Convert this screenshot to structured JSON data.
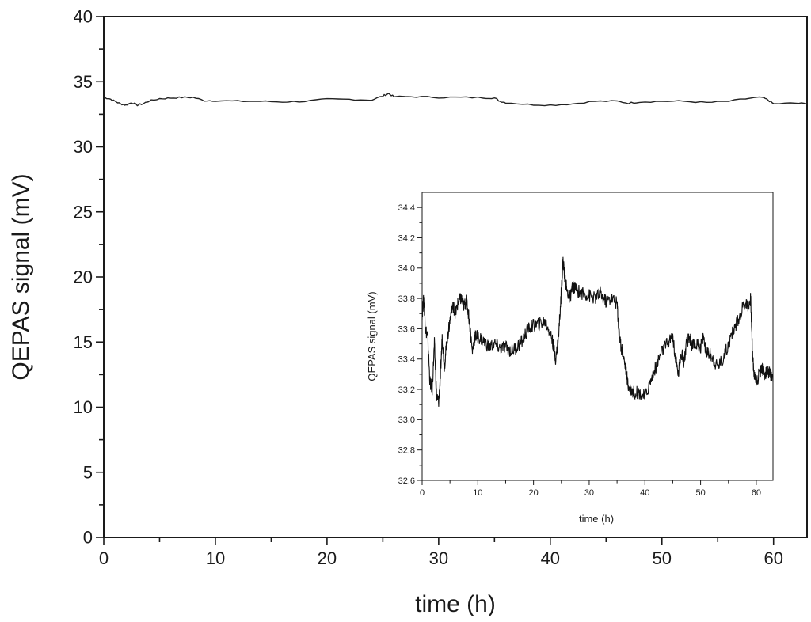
{
  "chart_data": [
    {
      "type": "line",
      "role": "main",
      "xlabel": "time (h)",
      "ylabel": "QEPAS signal (mV)",
      "xlim": [
        0,
        63
      ],
      "ylim": [
        0,
        40
      ],
      "xticks": [
        0,
        10,
        20,
        30,
        40,
        50,
        60
      ],
      "xtick_labels": [
        "0",
        "10",
        "20",
        "30",
        "40",
        "50",
        "60"
      ],
      "yticks": [
        0,
        5,
        10,
        15,
        20,
        25,
        30,
        35,
        40
      ],
      "ytick_labels": [
        "0",
        "5",
        "10",
        "15",
        "20",
        "25",
        "30",
        "35",
        "40"
      ],
      "line_color": "#222222",
      "series": [
        {
          "x": [
            0,
            0.5,
            1,
            1.5,
            2,
            2.5,
            3,
            3.5,
            4,
            5,
            6,
            7,
            8,
            9,
            10,
            12,
            14,
            16,
            18,
            20,
            22,
            24,
            25,
            25.5,
            26,
            28,
            30,
            32,
            34,
            35,
            35.5,
            36,
            38,
            40,
            42,
            44,
            46,
            47,
            48,
            50,
            52,
            54,
            56,
            58,
            59,
            59.5,
            60,
            62,
            63
          ],
          "y": [
            33.8,
            33.7,
            33.5,
            33.3,
            33.2,
            33.4,
            33.2,
            33.3,
            33.5,
            33.7,
            33.75,
            33.8,
            33.8,
            33.55,
            33.55,
            33.5,
            33.5,
            33.45,
            33.5,
            33.65,
            33.65,
            33.6,
            33.9,
            34.1,
            33.85,
            33.85,
            33.8,
            33.8,
            33.78,
            33.75,
            33.5,
            33.4,
            33.25,
            33.2,
            33.3,
            33.5,
            33.5,
            33.35,
            33.45,
            33.5,
            33.5,
            33.4,
            33.5,
            33.75,
            33.8,
            33.6,
            33.3,
            33.35,
            33.3
          ]
        }
      ]
    },
    {
      "type": "line",
      "role": "inset",
      "xlabel": "time (h)",
      "ylabel": "QEPAS signal (mV)",
      "xlim": [
        0,
        63
      ],
      "ylim": [
        32.6,
        34.5
      ],
      "xticks": [
        0,
        10,
        20,
        30,
        40,
        50,
        60
      ],
      "xtick_labels": [
        "0",
        "10",
        "20",
        "30",
        "40",
        "50",
        "60"
      ],
      "yticks": [
        32.6,
        32.8,
        33.0,
        33.2,
        33.4,
        33.6,
        33.8,
        34.0,
        34.2,
        34.4
      ],
      "ytick_labels": [
        "32,6",
        "32,8",
        "33,0",
        "33,2",
        "33,4",
        "33,6",
        "33,8",
        "34,0",
        "34,2",
        "34,4"
      ],
      "line_color": "#111111",
      "series": [
        {
          "x": [
            0,
            0.3,
            0.6,
            1,
            1.4,
            1.8,
            2.2,
            2.6,
            3,
            3.3,
            3.6,
            4,
            4.4,
            4.8,
            5.2,
            5.6,
            6,
            6.5,
            7,
            7.5,
            8,
            8.5,
            9,
            9.5,
            10,
            11,
            12,
            13,
            14,
            15,
            16,
            17,
            18,
            19,
            20,
            21,
            22,
            23,
            23.5,
            24,
            24.5,
            25,
            25.3,
            25.6,
            26,
            26.5,
            27,
            28,
            29,
            30,
            31,
            32,
            33,
            34,
            35,
            35.3,
            35.6,
            36,
            36.5,
            37,
            37.5,
            38,
            39,
            40,
            41,
            42,
            43,
            44,
            45,
            45.5,
            46,
            46.5,
            47,
            47.5,
            48,
            48.5,
            49,
            50,
            50.5,
            51,
            52,
            53,
            54,
            55,
            56,
            57,
            58,
            58.5,
            59,
            59.3,
            59.6,
            60,
            60.5,
            61,
            61.5,
            62,
            62.5,
            63
          ],
          "y": [
            33.7,
            33.8,
            33.6,
            33.55,
            33.25,
            33.2,
            33.5,
            33.15,
            33.12,
            33.3,
            33.55,
            33.35,
            33.5,
            33.6,
            33.72,
            33.75,
            33.7,
            33.78,
            33.8,
            33.75,
            33.78,
            33.65,
            33.45,
            33.55,
            33.55,
            33.52,
            33.48,
            33.5,
            33.47,
            33.48,
            33.45,
            33.48,
            33.52,
            33.6,
            33.62,
            33.63,
            33.65,
            33.58,
            33.5,
            33.4,
            33.55,
            33.85,
            34.05,
            33.95,
            33.85,
            33.8,
            33.88,
            33.85,
            33.83,
            33.82,
            33.8,
            33.83,
            33.78,
            33.8,
            33.77,
            33.6,
            33.5,
            33.45,
            33.35,
            33.22,
            33.2,
            33.18,
            33.18,
            33.15,
            33.25,
            33.35,
            33.45,
            33.5,
            33.55,
            33.4,
            33.3,
            33.45,
            33.38,
            33.5,
            33.55,
            33.48,
            33.5,
            33.48,
            33.55,
            33.45,
            33.42,
            33.35,
            33.4,
            33.5,
            33.6,
            33.68,
            33.78,
            33.75,
            33.8,
            33.45,
            33.3,
            33.25,
            33.3,
            33.35,
            33.3,
            33.32,
            33.3,
            33.25
          ]
        }
      ]
    }
  ]
}
